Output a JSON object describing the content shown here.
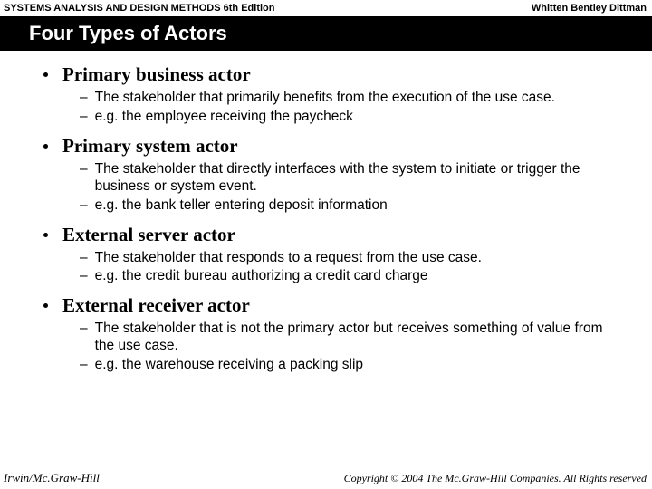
{
  "header": {
    "left": "SYSTEMS ANALYSIS AND DESIGN METHODS  6th Edition",
    "right": "Whitten  Bentley  Dittman"
  },
  "title": "Four Types of Actors",
  "items": [
    {
      "heading": "Primary business actor",
      "subs": [
        "The stakeholder that primarily benefits from the execution of the use case.",
        "e.g. the employee receiving the paycheck"
      ]
    },
    {
      "heading": "Primary system actor",
      "subs": [
        "The stakeholder that directly interfaces with the system to initiate or trigger the business or system event.",
        "e.g. the bank teller entering deposit information"
      ]
    },
    {
      "heading": "External server actor",
      "subs": [
        "The stakeholder that responds to a request from the use case.",
        "e.g. the credit bureau authorizing a credit card charge"
      ]
    },
    {
      "heading": "External receiver actor",
      "subs": [
        "The stakeholder that is not the primary actor but receives something of value from the use case.",
        "e.g. the warehouse receiving a packing slip"
      ]
    }
  ],
  "footer": {
    "left": "Irwin/Mc.Graw-Hill",
    "right": "Copyright © 2004 The Mc.Graw-Hill Companies. All Rights reserved"
  },
  "colors": {
    "title_bg": "#000000",
    "title_fg": "#ffffff",
    "text": "#000000",
    "page_bg": "#ffffff"
  }
}
